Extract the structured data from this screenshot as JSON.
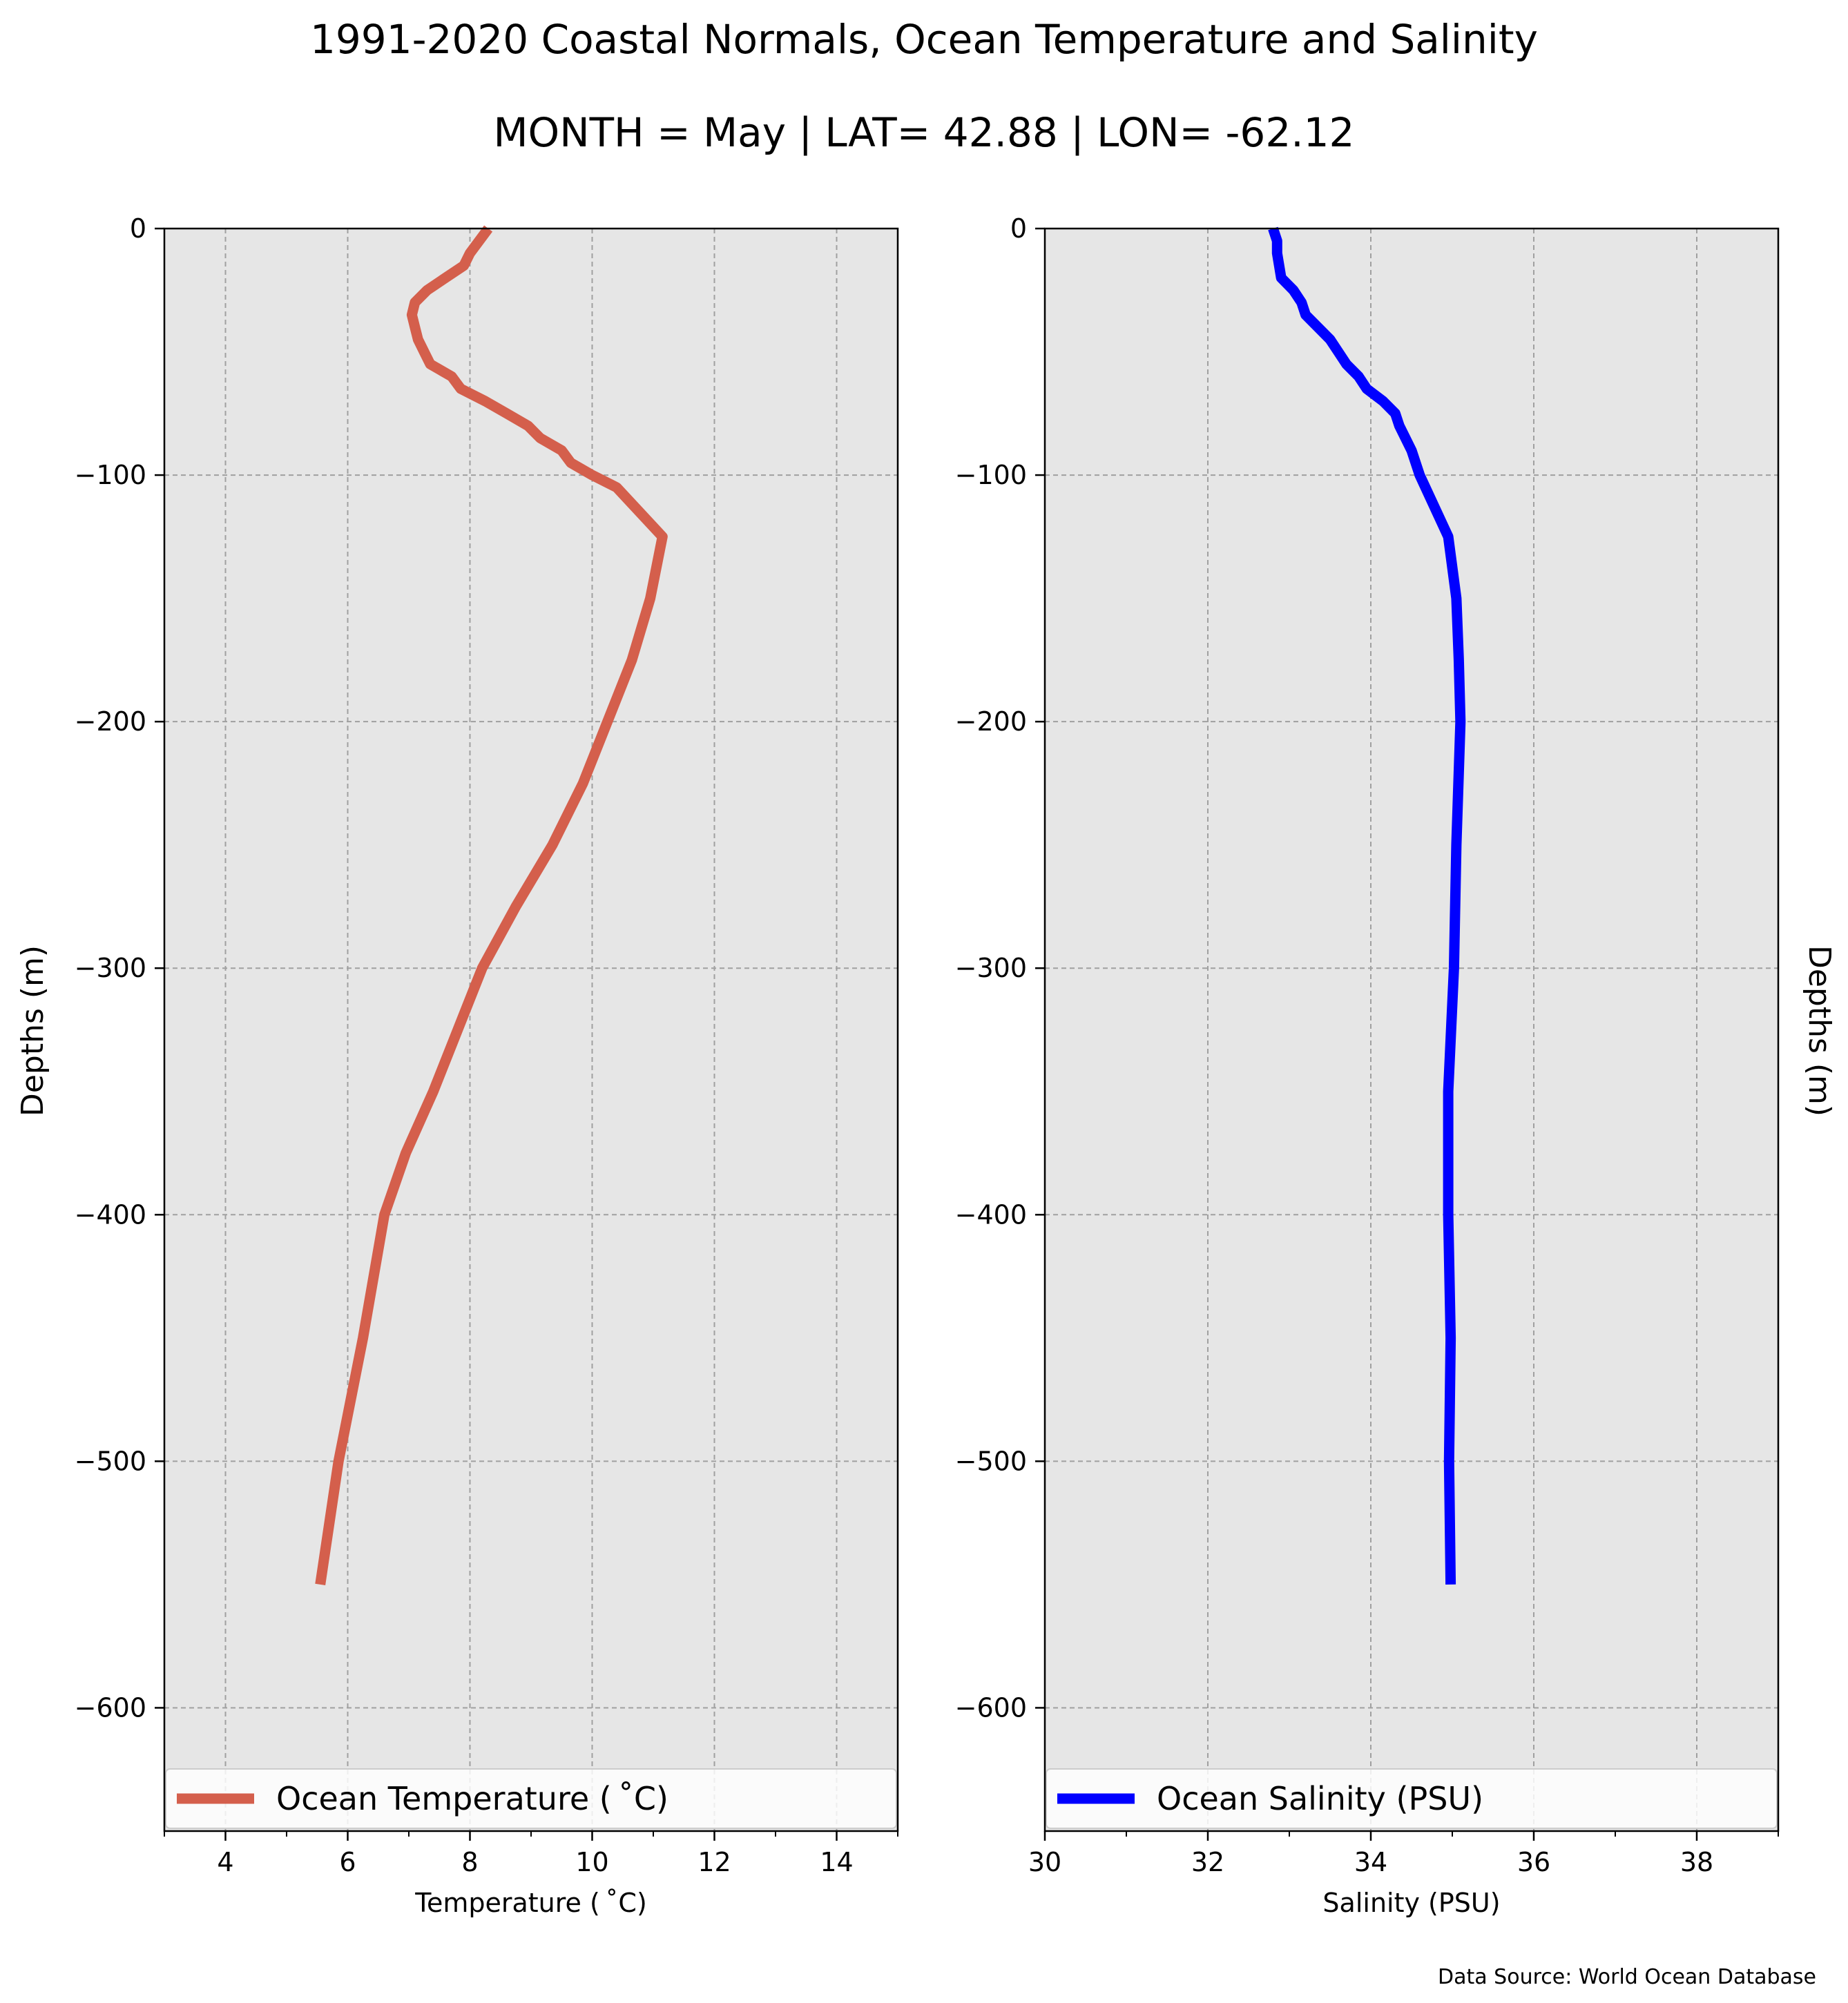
{
  "title": "1991-2020 Coastal Normals, Ocean Temperature and Salinity",
  "subtitle": "MONTH = May | LAT= 42.88 | LON= -62.12",
  "source_note": "Data Source: World Ocean Database",
  "chart_data": [
    {
      "type": "line",
      "xlabel": "Temperature ($^\\circ$C)",
      "xlabel_display": "Temperature ( ˚C)",
      "ylabel": "Depths (m)",
      "xlim": [
        3,
        15
      ],
      "ylim": [
        -650,
        0
      ],
      "xticks": [
        4,
        6,
        8,
        10,
        12,
        14
      ],
      "xticks_minor": [
        3,
        5,
        7,
        9,
        11,
        13,
        15
      ],
      "yticks": [
        0,
        -100,
        -200,
        -300,
        -400,
        -500,
        -600
      ],
      "grid": true,
      "legend_placement": "lower center",
      "series": [
        {
          "name": "Ocean Temperature ($^\\circ$C)",
          "name_display": "Ocean Temperature ( ˚C)",
          "color": "#d45f4c",
          "points": [
            [
              8.3,
              0
            ],
            [
              8.15,
              -5
            ],
            [
              8.0,
              -10
            ],
            [
              7.9,
              -15
            ],
            [
              7.6,
              -20
            ],
            [
              7.3,
              -25
            ],
            [
              7.1,
              -30
            ],
            [
              7.05,
              -35
            ],
            [
              7.1,
              -40
            ],
            [
              7.15,
              -45
            ],
            [
              7.25,
              -50
            ],
            [
              7.35,
              -55
            ],
            [
              7.7,
              -60
            ],
            [
              7.85,
              -65
            ],
            [
              8.25,
              -70
            ],
            [
              8.6,
              -75
            ],
            [
              8.95,
              -80
            ],
            [
              9.15,
              -85
            ],
            [
              9.5,
              -90
            ],
            [
              9.65,
              -95
            ],
            [
              10.0,
              -100
            ],
            [
              10.4,
              -105
            ],
            [
              11.15,
              -125
            ],
            [
              10.95,
              -150
            ],
            [
              10.65,
              -175
            ],
            [
              10.25,
              -200
            ],
            [
              9.85,
              -225
            ],
            [
              9.35,
              -250
            ],
            [
              8.75,
              -275
            ],
            [
              8.2,
              -300
            ],
            [
              7.8,
              -325
            ],
            [
              7.4,
              -350
            ],
            [
              6.95,
              -375
            ],
            [
              6.6,
              -400
            ],
            [
              6.25,
              -450
            ],
            [
              5.85,
              -500
            ],
            [
              5.55,
              -550
            ]
          ]
        }
      ]
    },
    {
      "type": "line",
      "xlabel": "Salinity (PSU)",
      "ylabel": "Depths (m)",
      "xlim": [
        30,
        39
      ],
      "ylim": [
        -650,
        0
      ],
      "xticks": [
        30,
        32,
        34,
        36,
        38
      ],
      "xticks_minor": [
        31,
        33,
        35,
        37,
        39
      ],
      "yticks": [
        0,
        -100,
        -200,
        -300,
        -400,
        -500,
        -600
      ],
      "grid": true,
      "legend_placement": "lower center",
      "series": [
        {
          "name": "Ocean Salinity (PSU)",
          "color": "#0000ff",
          "points": [
            [
              32.8,
              0
            ],
            [
              32.85,
              -5
            ],
            [
              32.85,
              -10
            ],
            [
              32.9,
              -20
            ],
            [
              33.05,
              -25
            ],
            [
              33.15,
              -30
            ],
            [
              33.2,
              -35
            ],
            [
              33.5,
              -45
            ],
            [
              33.6,
              -50
            ],
            [
              33.7,
              -55
            ],
            [
              33.85,
              -60
            ],
            [
              33.95,
              -65
            ],
            [
              34.15,
              -70
            ],
            [
              34.3,
              -75
            ],
            [
              34.35,
              -80
            ],
            [
              34.5,
              -90
            ],
            [
              34.6,
              -100
            ],
            [
              34.95,
              -125
            ],
            [
              35.05,
              -150
            ],
            [
              35.08,
              -175
            ],
            [
              35.1,
              -200
            ],
            [
              35.05,
              -250
            ],
            [
              35.02,
              -300
            ],
            [
              34.95,
              -350
            ],
            [
              34.95,
              -400
            ],
            [
              34.98,
              -450
            ],
            [
              34.96,
              -500
            ],
            [
              34.98,
              -550
            ]
          ]
        }
      ]
    }
  ]
}
